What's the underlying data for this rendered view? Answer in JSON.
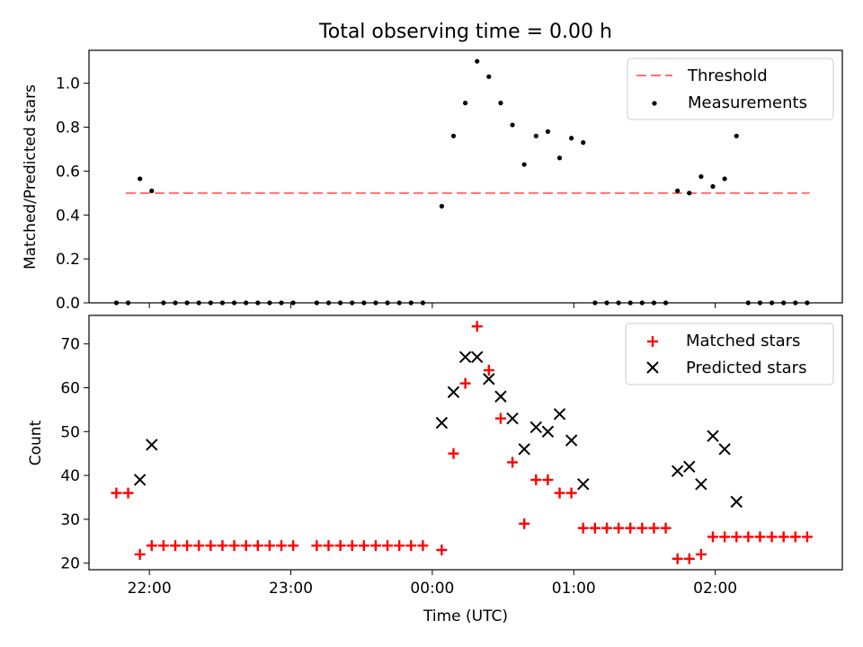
{
  "chart_data": [
    {
      "type": "scatter",
      "title": "Total observing time = 0.00 h",
      "ylabel": "Matched/Predicted stars",
      "xlabel": "",
      "ylim": [
        0,
        1.15
      ],
      "yticks": [
        "0.0",
        "0.2",
        "0.4",
        "0.6",
        "0.8",
        "1.0"
      ],
      "threshold": {
        "name": "Threshold",
        "x_range": [
          "21:50",
          "02:40"
        ],
        "value": 0.5,
        "color": "#ff7070"
      },
      "series": [
        {
          "name": "Measurements",
          "color": "#000000",
          "points": [
            [
              "21:46",
              0.0
            ],
            [
              "21:51",
              0.0
            ],
            [
              "21:56",
              0.565
            ],
            [
              "22:01",
              0.51
            ],
            [
              "22:06",
              0.0
            ],
            [
              "22:11",
              0.0
            ],
            [
              "22:16",
              0.0
            ],
            [
              "22:21",
              0.0
            ],
            [
              "22:26",
              0.0
            ],
            [
              "22:31",
              0.0
            ],
            [
              "22:36",
              0.0
            ],
            [
              "22:41",
              0.0
            ],
            [
              "22:46",
              0.0
            ],
            [
              "22:51",
              0.0
            ],
            [
              "22:56",
              0.0
            ],
            [
              "23:01",
              0.0
            ],
            [
              "23:11",
              0.0
            ],
            [
              "23:16",
              0.0
            ],
            [
              "23:21",
              0.0
            ],
            [
              "23:26",
              0.0
            ],
            [
              "23:31",
              0.0
            ],
            [
              "23:36",
              0.0
            ],
            [
              "23:41",
              0.0
            ],
            [
              "23:46",
              0.0
            ],
            [
              "23:51",
              0.0
            ],
            [
              "23:56",
              0.0
            ],
            [
              "00:04",
              0.44
            ],
            [
              "00:09",
              0.76
            ],
            [
              "00:14",
              0.91
            ],
            [
              "00:19",
              1.1
            ],
            [
              "00:24",
              1.03
            ],
            [
              "00:29",
              0.91
            ],
            [
              "00:34",
              0.81
            ],
            [
              "00:39",
              0.63
            ],
            [
              "00:44",
              0.76
            ],
            [
              "00:49",
              0.78
            ],
            [
              "00:54",
              0.66
            ],
            [
              "00:59",
              0.75
            ],
            [
              "01:04",
              0.73
            ],
            [
              "01:09",
              0.0
            ],
            [
              "01:14",
              0.0
            ],
            [
              "01:19",
              0.0
            ],
            [
              "01:24",
              0.0
            ],
            [
              "01:29",
              0.0
            ],
            [
              "01:34",
              0.0
            ],
            [
              "01:39",
              0.0
            ],
            [
              "01:44",
              0.51
            ],
            [
              "01:49",
              0.5
            ],
            [
              "01:54",
              0.575
            ],
            [
              "01:59",
              0.53
            ],
            [
              "02:04",
              0.565
            ],
            [
              "02:09",
              0.76
            ],
            [
              "02:14",
              0.0
            ],
            [
              "02:19",
              0.0
            ],
            [
              "02:24",
              0.0
            ],
            [
              "02:29",
              0.0
            ],
            [
              "02:34",
              0.0
            ],
            [
              "02:39",
              0.0
            ]
          ]
        }
      ],
      "legend_position": "upper right"
    },
    {
      "type": "scatter",
      "title": "",
      "ylabel": "Count",
      "xlabel": "Time (UTC)",
      "ylim": [
        18.5,
        76.5
      ],
      "yticks": [
        "20",
        "30",
        "40",
        "50",
        "60",
        "70"
      ],
      "xticks": [
        "22:00",
        "23:00",
        "00:00",
        "01:00",
        "02:00"
      ],
      "series": [
        {
          "name": "Matched stars",
          "marker": "+",
          "color": "#ff0000",
          "points": [
            [
              "21:46",
              36
            ],
            [
              "21:51",
              36
            ],
            [
              "21:56",
              22
            ],
            [
              "22:01",
              24
            ],
            [
              "22:06",
              24
            ],
            [
              "22:11",
              24
            ],
            [
              "22:16",
              24
            ],
            [
              "22:21",
              24
            ],
            [
              "22:26",
              24
            ],
            [
              "22:31",
              24
            ],
            [
              "22:36",
              24
            ],
            [
              "22:41",
              24
            ],
            [
              "22:46",
              24
            ],
            [
              "22:51",
              24
            ],
            [
              "22:56",
              24
            ],
            [
              "23:01",
              24
            ],
            [
              "23:11",
              24
            ],
            [
              "23:16",
              24
            ],
            [
              "23:21",
              24
            ],
            [
              "23:26",
              24
            ],
            [
              "23:31",
              24
            ],
            [
              "23:36",
              24
            ],
            [
              "23:41",
              24
            ],
            [
              "23:46",
              24
            ],
            [
              "23:51",
              24
            ],
            [
              "23:56",
              24
            ],
            [
              "00:04",
              23
            ],
            [
              "00:09",
              45
            ],
            [
              "00:14",
              61
            ],
            [
              "00:19",
              74
            ],
            [
              "00:24",
              64
            ],
            [
              "00:29",
              53
            ],
            [
              "00:34",
              43
            ],
            [
              "00:39",
              29
            ],
            [
              "00:44",
              39
            ],
            [
              "00:49",
              39
            ],
            [
              "00:54",
              36
            ],
            [
              "00:59",
              36
            ],
            [
              "01:04",
              28
            ],
            [
              "01:09",
              28
            ],
            [
              "01:14",
              28
            ],
            [
              "01:19",
              28
            ],
            [
              "01:24",
              28
            ],
            [
              "01:29",
              28
            ],
            [
              "01:34",
              28
            ],
            [
              "01:39",
              28
            ],
            [
              "01:44",
              21
            ],
            [
              "01:49",
              21
            ],
            [
              "01:54",
              22
            ],
            [
              "01:59",
              26
            ],
            [
              "02:04",
              26
            ],
            [
              "02:09",
              26
            ],
            [
              "02:14",
              26
            ],
            [
              "02:19",
              26
            ],
            [
              "02:24",
              26
            ],
            [
              "02:29",
              26
            ],
            [
              "02:34",
              26
            ],
            [
              "02:39",
              26
            ]
          ]
        },
        {
          "name": "Predicted stars",
          "marker": "x",
          "color": "#000000",
          "points": [
            [
              "21:56",
              39
            ],
            [
              "22:01",
              47
            ],
            [
              "00:04",
              52
            ],
            [
              "00:09",
              59
            ],
            [
              "00:14",
              67
            ],
            [
              "00:19",
              67
            ],
            [
              "00:24",
              62
            ],
            [
              "00:29",
              58
            ],
            [
              "00:34",
              53
            ],
            [
              "00:39",
              46
            ],
            [
              "00:44",
              51
            ],
            [
              "00:49",
              50
            ],
            [
              "00:54",
              54
            ],
            [
              "00:59",
              48
            ],
            [
              "01:04",
              38
            ],
            [
              "01:44",
              41
            ],
            [
              "01:49",
              42
            ],
            [
              "01:54",
              38
            ],
            [
              "01:59",
              49
            ],
            [
              "02:04",
              46
            ],
            [
              "02:09",
              34
            ]
          ]
        }
      ],
      "legend_position": "upper right"
    }
  ]
}
